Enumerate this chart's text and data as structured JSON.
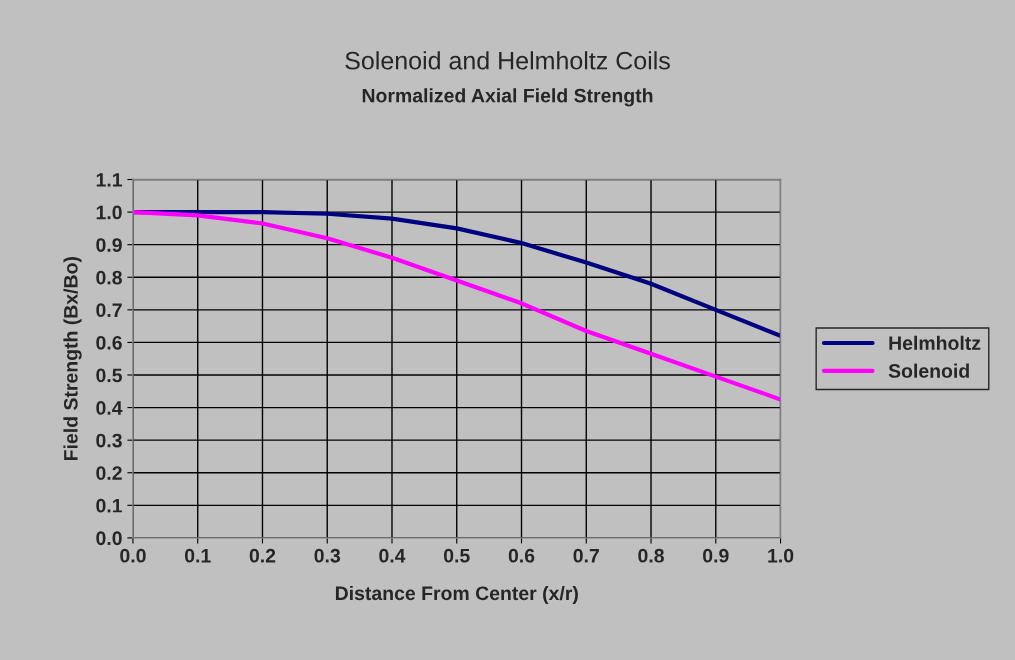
{
  "chart_data": {
    "type": "line",
    "title": "Solenoid and Helmholtz Coils",
    "subtitle": "Normalized Axial Field Strength",
    "xlabel": "Distance From Center (x/r)",
    "ylabel": "Field Strength (Bx/Bo)",
    "x": [
      0.0,
      0.1,
      0.2,
      0.3,
      0.4,
      0.5,
      0.6,
      0.7,
      0.8,
      0.9,
      1.0
    ],
    "series": [
      {
        "name": "Helmholtz",
        "color": "#000080",
        "values": [
          1.0,
          1.0,
          1.0,
          0.995,
          0.98,
          0.95,
          0.905,
          0.845,
          0.78,
          0.7,
          0.62
        ]
      },
      {
        "name": "Solenoid",
        "color": "#ff00ff",
        "values": [
          1.0,
          0.99,
          0.965,
          0.92,
          0.86,
          0.79,
          0.72,
          0.635,
          0.565,
          0.495,
          0.425
        ]
      }
    ],
    "xlim": [
      0.0,
      1.0
    ],
    "xticks": [
      {
        "value": 0.0,
        "label": "0.0"
      },
      0.1,
      0.2,
      0.3,
      0.4,
      0.5,
      0.6,
      0.7,
      0.8,
      0.9,
      {
        "value": 1.0,
        "label": "1.0"
      }
    ],
    "ylim": [
      0.0,
      1.1
    ],
    "yticks": [
      {
        "value": 0.0,
        "label": "0.0"
      },
      0.1,
      0.2,
      0.3,
      0.4,
      0.5,
      0.6,
      0.7,
      0.8,
      0.9,
      {
        "value": 1.0,
        "label": "1.0"
      },
      1.1
    ],
    "grid": true,
    "legend": "right",
    "marker": "none",
    "line_style": "solid"
  }
}
